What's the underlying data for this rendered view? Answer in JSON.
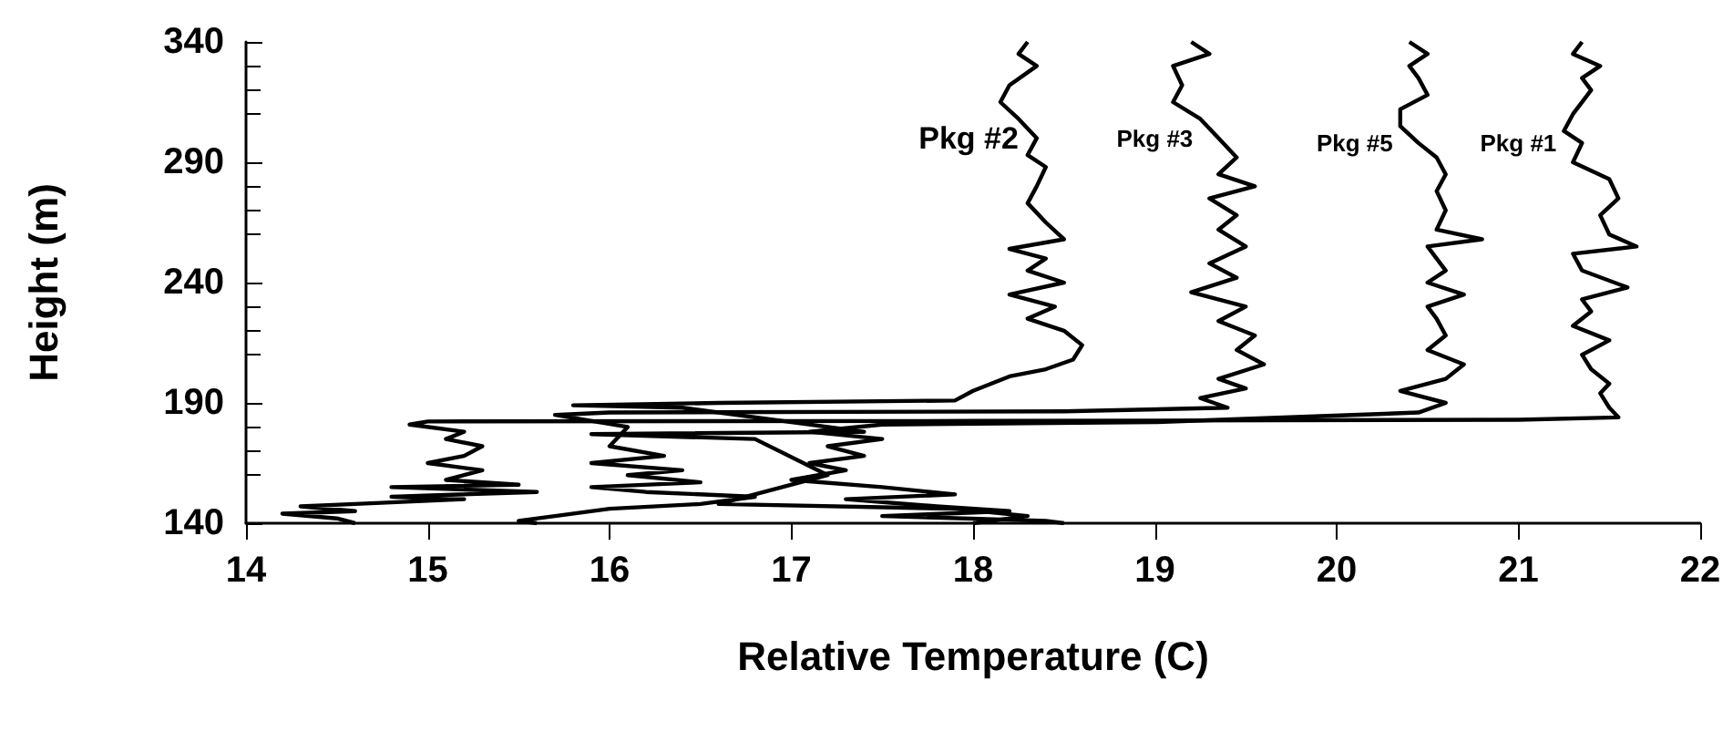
{
  "chart_data": {
    "type": "line",
    "xlabel": "Relative Temperature (C)",
    "ylabel": "Height (m)",
    "xlim": [
      14,
      22
    ],
    "xticks": [
      14,
      15,
      16,
      17,
      18,
      19,
      20,
      21,
      22
    ],
    "ylim": [
      140,
      340
    ],
    "yticks": [
      140,
      190,
      240,
      290,
      340
    ],
    "grid": false,
    "marker": "none",
    "line_style": "solid",
    "series": [
      {
        "name": "Pkg #2",
        "color": "#000000",
        "x": [
          18.3,
          18.25,
          18.35,
          18.2,
          18.15,
          18.25,
          18.35,
          18.3,
          18.4,
          18.35,
          18.3,
          18.4,
          18.5,
          18.2,
          18.4,
          18.3,
          18.5,
          18.2,
          18.45,
          18.3,
          18.5,
          18.6,
          18.55,
          18.4,
          18.2,
          18.0,
          17.9,
          16.6,
          15.8,
          16.4,
          17.4,
          15.9,
          16.8,
          17.2,
          16.6,
          17.9,
          18.3,
          18.0
        ],
        "values": [
          340,
          335,
          330,
          322,
          315,
          308,
          300,
          293,
          288,
          280,
          273,
          265,
          258,
          254,
          250,
          245,
          240,
          235,
          230,
          225,
          220,
          214,
          208,
          204,
          201,
          195,
          191,
          190,
          189,
          188,
          178,
          177,
          175,
          160,
          148,
          146,
          143,
          140
        ]
      },
      {
        "name": "Pkg #3",
        "color": "#000000",
        "x": [
          19.2,
          19.3,
          19.1,
          19.15,
          19.1,
          19.25,
          19.35,
          19.45,
          19.35,
          19.55,
          19.3,
          19.45,
          19.35,
          19.5,
          19.3,
          19.45,
          19.2,
          19.5,
          19.35,
          19.55,
          19.45,
          19.6,
          19.35,
          19.5,
          19.25,
          19.4,
          18.5,
          16.0,
          15.7,
          16.1,
          16.0,
          16.3,
          15.9,
          16.4,
          16.1,
          16.5,
          15.9,
          16.2,
          16.8,
          16.5,
          16.0,
          15.7,
          15.5,
          15.6
        ],
        "values": [
          340,
          335,
          330,
          322,
          315,
          308,
          300,
          292,
          285,
          280,
          275,
          268,
          262,
          255,
          248,
          242,
          236,
          230,
          224,
          218,
          212,
          206,
          200,
          196,
          192,
          188,
          186.5,
          186,
          185,
          180,
          172,
          168,
          165,
          162,
          160,
          157,
          155,
          153,
          151,
          148,
          146,
          143,
          141,
          140
        ]
      },
      {
        "name": "Pkg #5",
        "color": "#000000",
        "x": [
          20.4,
          20.5,
          20.4,
          20.45,
          20.5,
          20.35,
          20.35,
          20.45,
          20.55,
          20.6,
          20.55,
          20.6,
          20.55,
          20.8,
          20.5,
          20.55,
          20.6,
          20.5,
          20.7,
          20.5,
          20.55,
          20.6,
          20.5,
          20.7,
          20.6,
          20.35,
          20.6,
          20.45,
          19.0,
          17.5,
          17.1,
          17.5,
          17.2,
          17.4,
          17.1,
          17.3,
          17.0,
          17.5,
          17.9,
          17.3,
          17.8,
          18.2,
          17.5,
          18.4,
          18.5
        ],
        "values": [
          340,
          335,
          330,
          325,
          318,
          312,
          305,
          298,
          292,
          285,
          278,
          270,
          262,
          258,
          255,
          250,
          245,
          240,
          235,
          230,
          225,
          218,
          212,
          206,
          200,
          195,
          190,
          186,
          182,
          181,
          178,
          175,
          172,
          168,
          165,
          162,
          158,
          155,
          152,
          150,
          147,
          145,
          143,
          141,
          140
        ]
      },
      {
        "name": "Pkg #1",
        "color": "#000000",
        "x": [
          21.35,
          21.3,
          21.45,
          21.35,
          21.4,
          21.3,
          21.25,
          21.35,
          21.3,
          21.5,
          21.55,
          21.45,
          21.5,
          21.65,
          21.3,
          21.35,
          21.6,
          21.35,
          21.4,
          21.3,
          21.5,
          21.35,
          21.4,
          21.5,
          21.45,
          21.5,
          21.55,
          21.0,
          18.0,
          15.0,
          14.9,
          15.2,
          15.1,
          15.3,
          15.2,
          15.0,
          15.3,
          15.1,
          15.5,
          14.8,
          15.6,
          14.8,
          15.2,
          14.6,
          14.3,
          14.6,
          14.2,
          14.5,
          14.6
        ],
        "values": [
          340,
          335,
          330,
          325,
          320,
          310,
          303,
          298,
          290,
          283,
          275,
          268,
          260,
          255,
          252,
          245,
          238,
          233,
          228,
          222,
          216,
          210,
          204,
          198,
          194,
          188,
          184,
          183,
          182.5,
          182.3,
          181,
          178,
          175,
          172,
          168,
          165,
          162,
          158,
          156,
          155,
          153,
          151,
          150,
          148,
          147,
          145,
          144,
          142,
          140
        ]
      }
    ]
  }
}
